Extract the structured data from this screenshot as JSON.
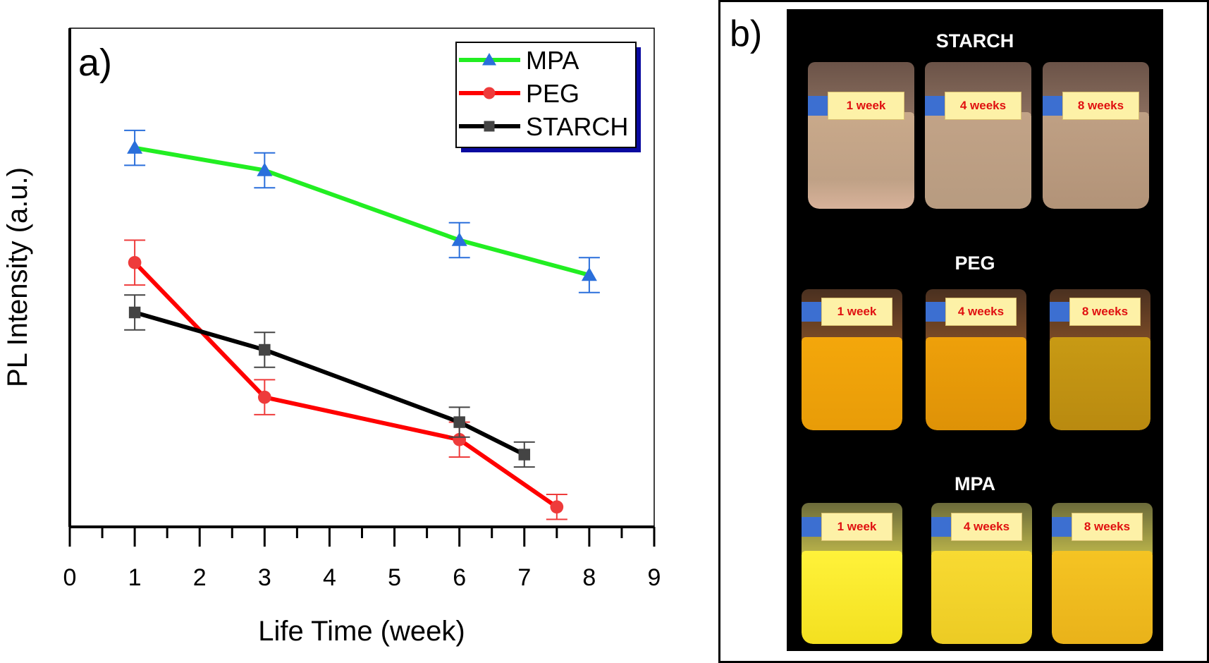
{
  "chart_data": {
    "type": "line",
    "panel_label": "a)",
    "xlabel": "Life Time (week)",
    "ylabel": "PL Intensity (a.u.)",
    "xlim": [
      0,
      9
    ],
    "ylim": [
      0,
      100
    ],
    "x_ticks": [
      "0",
      "1",
      "2",
      "3",
      "4",
      "5",
      "6",
      "7",
      "8",
      "9"
    ],
    "y_ticks_shown": false,
    "legend_position": "top-right",
    "series": [
      {
        "name": "MPA",
        "color": "#22ee22",
        "marker": "triangle",
        "marker_color": "#2a6fdb",
        "x": [
          1,
          3,
          6,
          8
        ],
        "y": [
          76,
          71.5,
          57.5,
          50.5
        ],
        "err": [
          3.5,
          3.5,
          3.5,
          3.5
        ]
      },
      {
        "name": "PEG",
        "color": "#ff0000",
        "marker": "circle",
        "marker_color": "#ee3b3b",
        "x": [
          1,
          3,
          6,
          7.5
        ],
        "y": [
          53,
          26,
          17.5,
          4
        ],
        "err": [
          4.5,
          3.5,
          3.5,
          2.5
        ]
      },
      {
        "name": "STARCH",
        "color": "#000000",
        "marker": "square",
        "marker_color": "#444444",
        "x": [
          1,
          3,
          6,
          7
        ],
        "y": [
          43,
          35.5,
          21,
          14.5
        ],
        "err": [
          3.5,
          3.5,
          3,
          2.5
        ]
      }
    ]
  },
  "panel_b": {
    "label": "b)",
    "groups": [
      {
        "title": "STARCH",
        "tags": [
          "1 week",
          "4 weeks",
          "8 weeks"
        ]
      },
      {
        "title": "PEG",
        "tags": [
          "1 week",
          "4 weeks",
          "8 weeks"
        ]
      },
      {
        "title": "MPA",
        "tags": [
          "1 week",
          "4 weeks",
          "8 weeks"
        ]
      }
    ]
  }
}
